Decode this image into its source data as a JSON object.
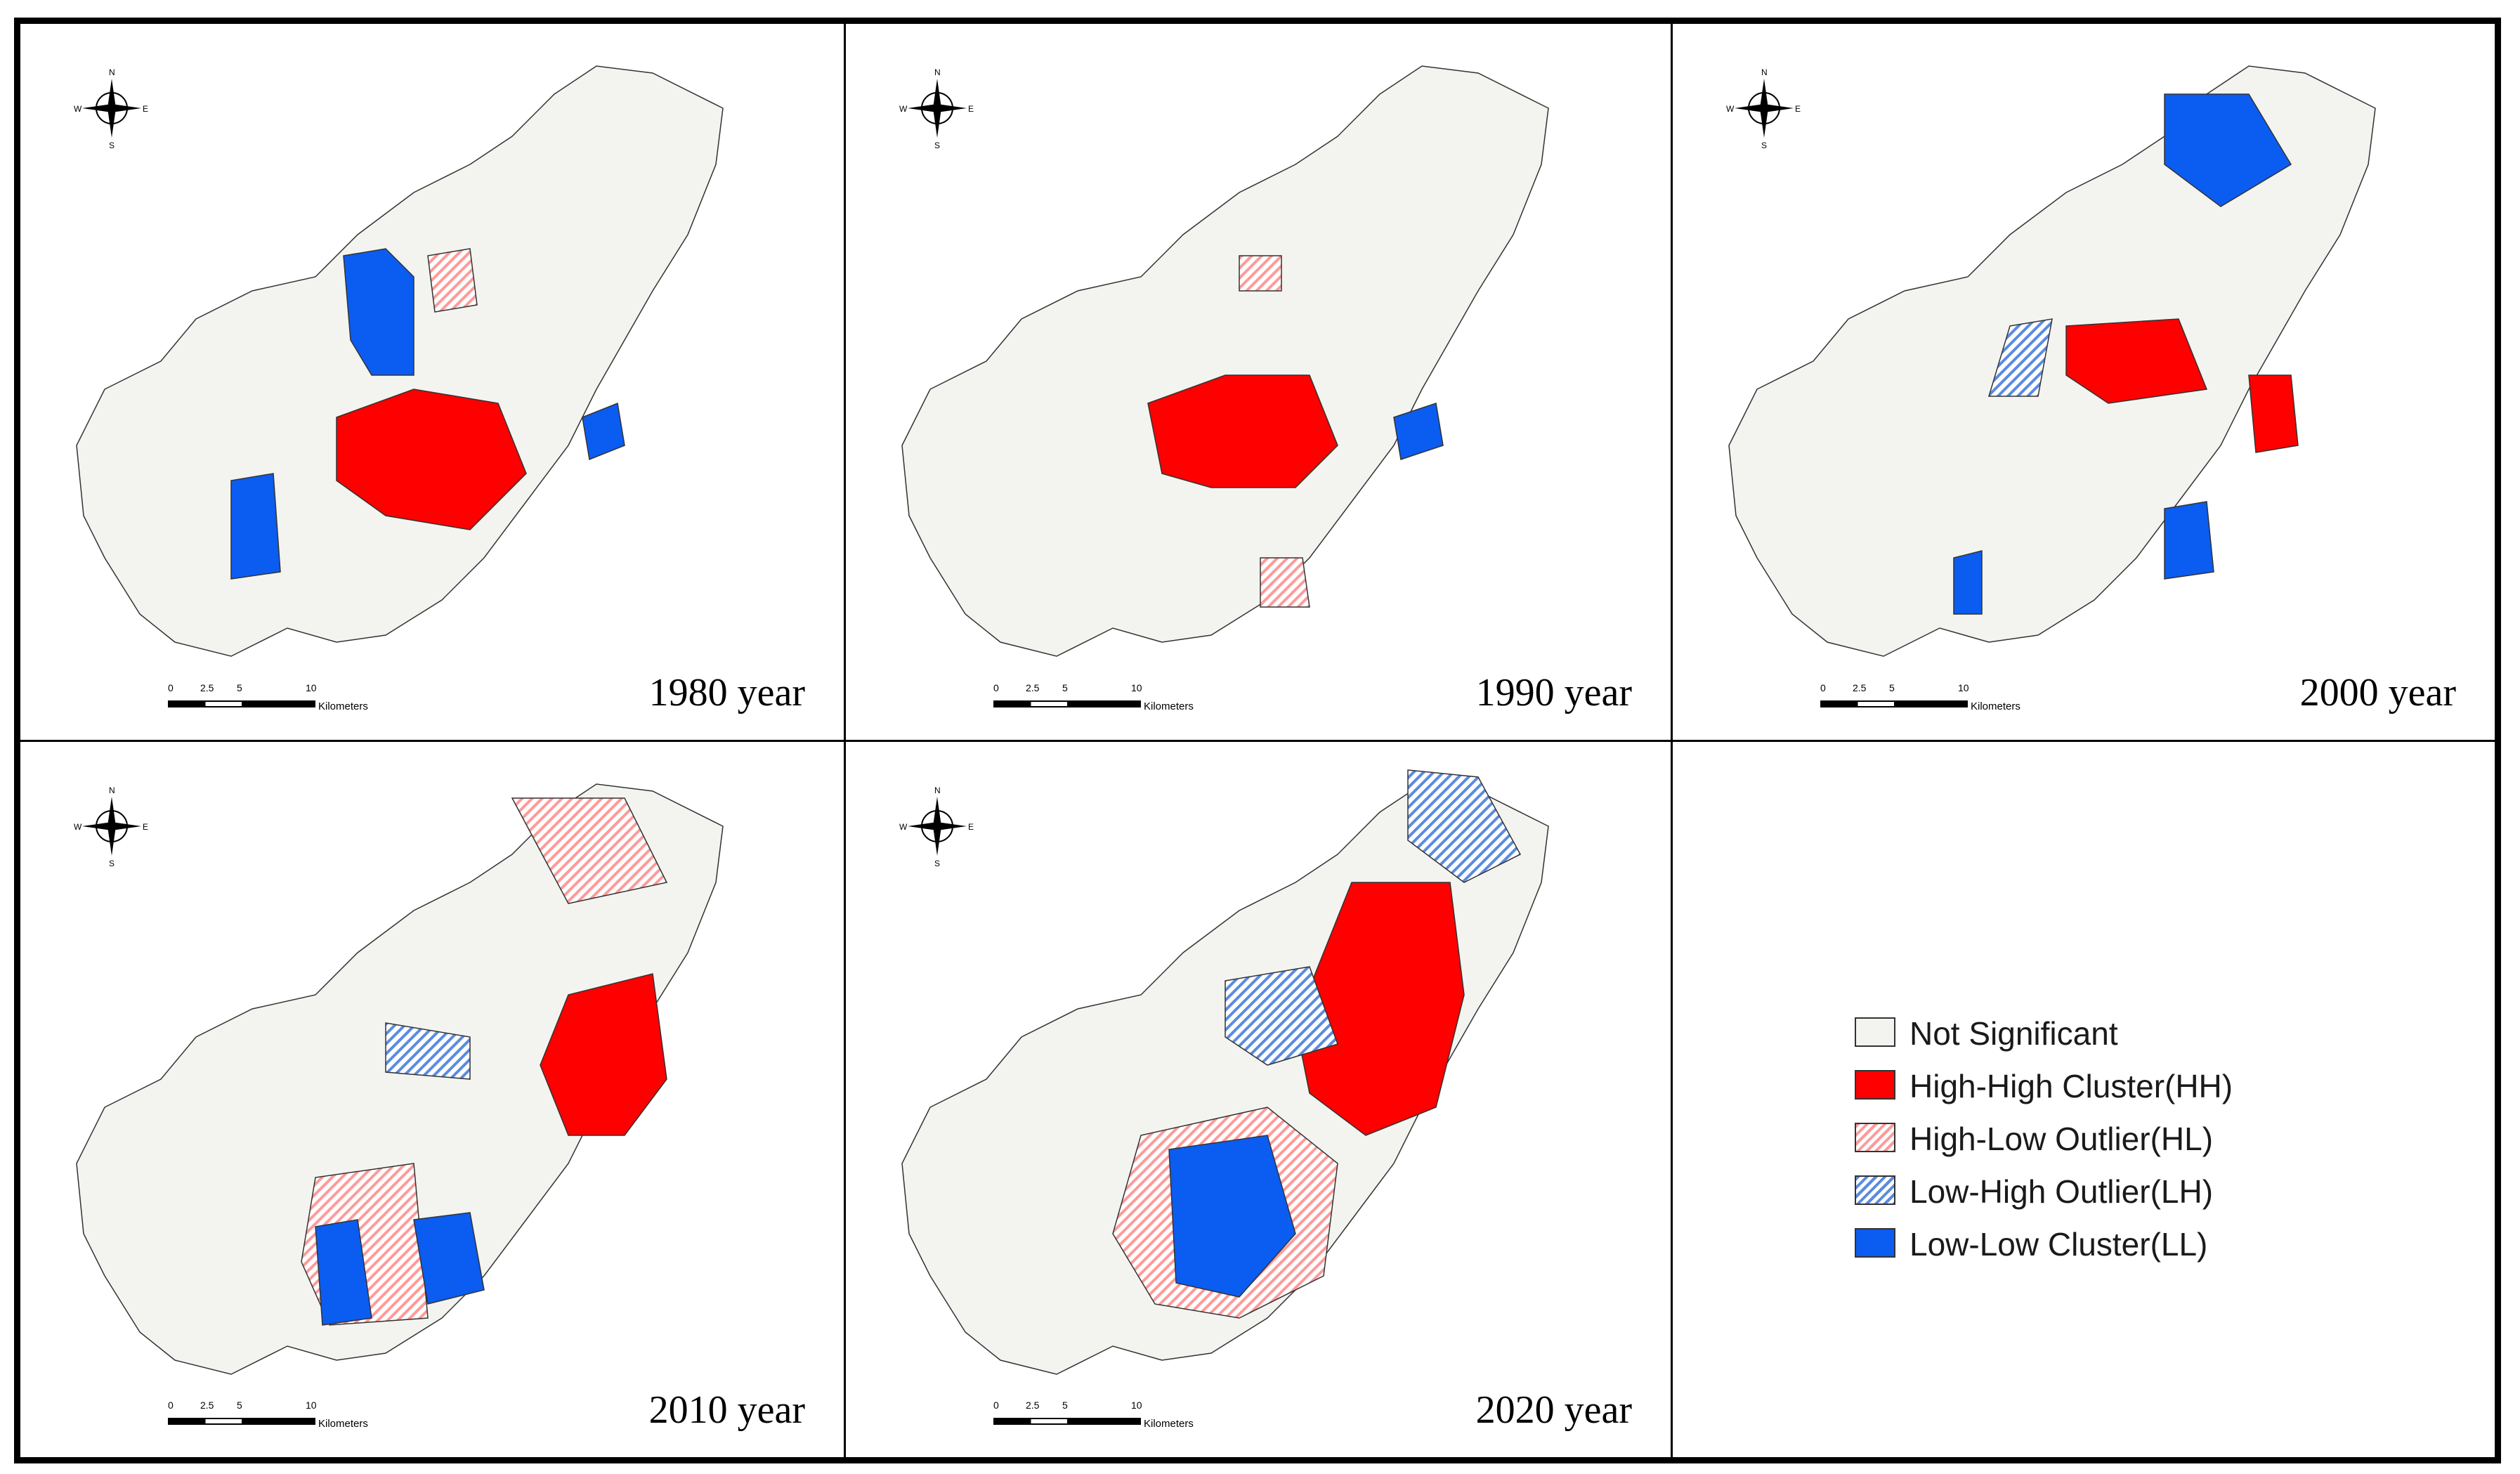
{
  "figure": {
    "panels": [
      {
        "year_label": "1980 year"
      },
      {
        "year_label": "1990 year"
      },
      {
        "year_label": "2000 year"
      },
      {
        "year_label": "2010 year"
      },
      {
        "year_label": "2020 year"
      }
    ],
    "scalebar": {
      "ticks": [
        "0",
        "2.5",
        "5",
        "10"
      ],
      "unit": "Kilometers"
    },
    "compass": {
      "n": "N",
      "s": "S",
      "e": "E",
      "w": "W"
    }
  },
  "legend": {
    "items": [
      {
        "label": "Not Significant",
        "color": "#f3f3ef"
      },
      {
        "label": "High-High Cluster(HH)",
        "color": "#ff0000"
      },
      {
        "label": "High-Low Outlier(HL)",
        "color": "#ff9a9a"
      },
      {
        "label": "Low-High Outlier(LH)",
        "color": "#5b8be0"
      },
      {
        "label": "Low-Low Cluster(LL)",
        "color": "#0b5cf0"
      }
    ]
  },
  "colors": {
    "not_significant": "#f3f3ef",
    "hh": "#ff0000",
    "hl": "#ff9a9a",
    "lh": "#5b8be0",
    "ll": "#0b5cf0"
  }
}
